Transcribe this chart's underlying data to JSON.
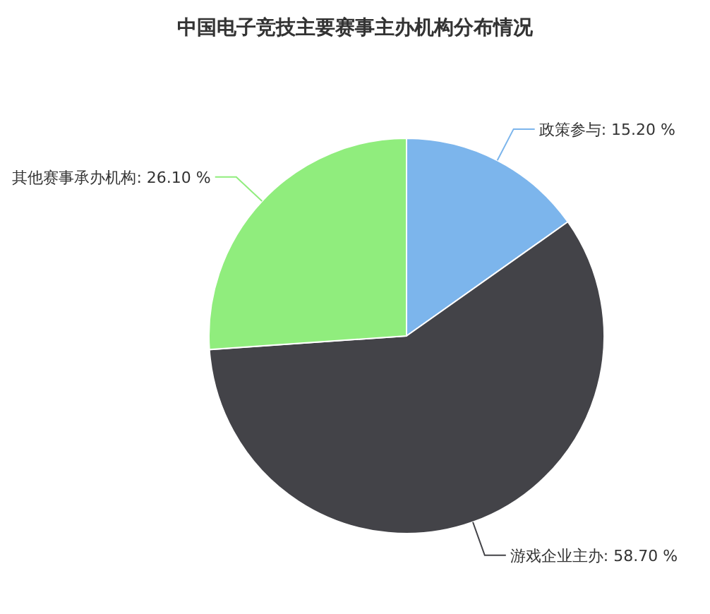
{
  "chart_data": {
    "type": "pie",
    "title": "中国电子竞技主要赛事主办机构分布情况",
    "categories": [
      "政策参与",
      "游戏企业主办",
      "其他赛事承办机构"
    ],
    "values": [
      15.2,
      58.7,
      26.1
    ],
    "value_labels": [
      "15.20 %",
      "58.70 %",
      "26.10 %"
    ],
    "colors": [
      "#7cb5ec",
      "#434348",
      "#90ed7d"
    ]
  }
}
